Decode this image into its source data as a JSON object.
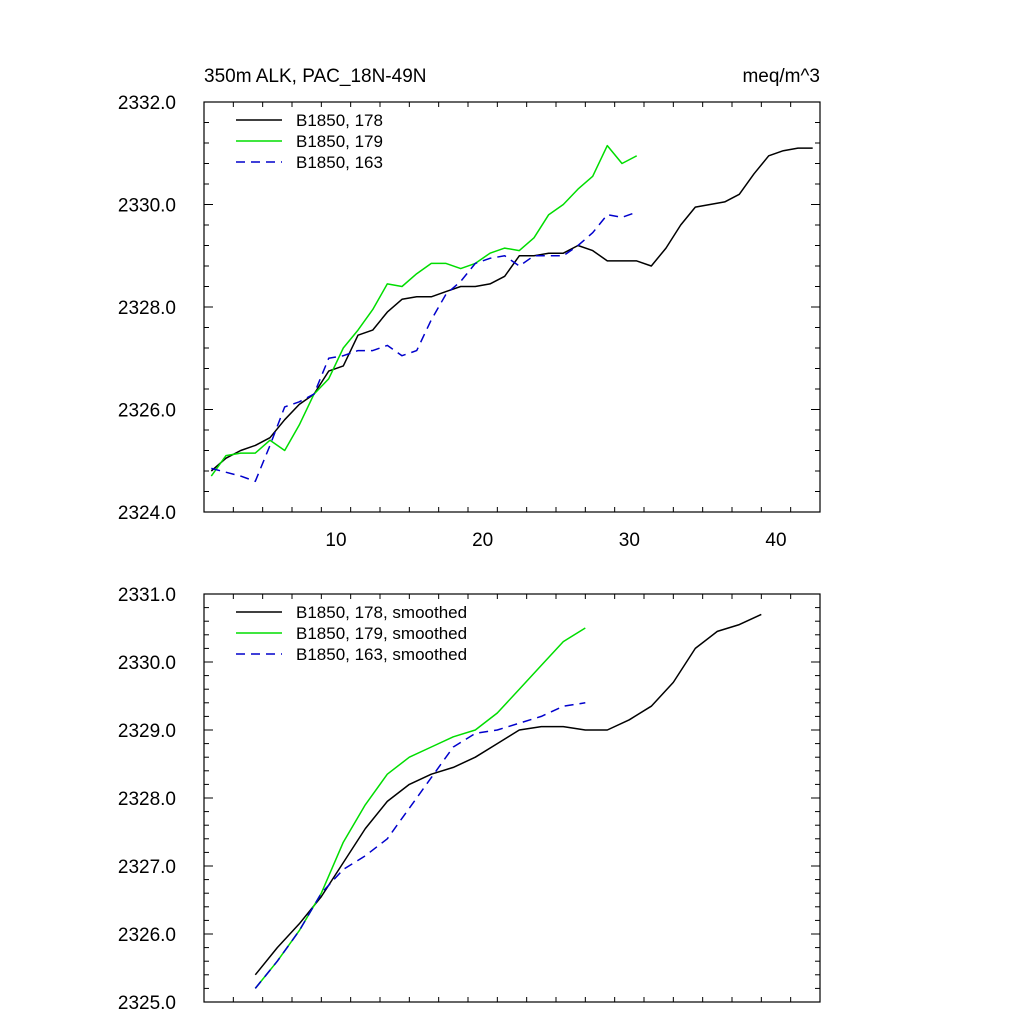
{
  "chart_data": [
    {
      "type": "line",
      "title": "350m ALK, PAC_18N-49N",
      "title_right": "meq/m^3",
      "xlim": [
        1,
        43
      ],
      "ylim": [
        2324.0,
        2332.0
      ],
      "xticks": [
        10,
        20,
        30,
        40
      ],
      "xtick_labels": [
        "10",
        "20",
        "30",
        "40"
      ],
      "yticks": [
        2324.0,
        2326.0,
        2328.0,
        2330.0,
        2332.0
      ],
      "ytick_labels": [
        "2324.0",
        "2326.0",
        "2328.0",
        "2330.0",
        "2332.0"
      ],
      "legend_position": "top-left",
      "series": [
        {
          "name": "B1850, 178",
          "color": "#000000",
          "dash": "solid",
          "x": [
            1.5,
            2.5,
            3.5,
            4.5,
            5.5,
            6.5,
            7.5,
            8.5,
            9.5,
            10.5,
            11.5,
            12.5,
            13.5,
            14.5,
            15.5,
            16.5,
            17.5,
            18.5,
            19.5,
            20.5,
            21.5,
            22.5,
            23.5,
            24.5,
            25.5,
            26.5,
            27.5,
            28.5,
            29.5,
            30.5,
            31.5,
            32.5,
            33.5,
            34.5,
            35.5,
            36.5,
            37.5,
            38.5,
            39.5,
            40.5,
            41.5,
            42.5
          ],
          "y": [
            2324.8,
            2325.05,
            2325.2,
            2325.3,
            2325.45,
            2325.8,
            2326.1,
            2326.3,
            2326.75,
            2326.85,
            2327.45,
            2327.55,
            2327.9,
            2328.15,
            2328.2,
            2328.2,
            2328.3,
            2328.4,
            2328.4,
            2328.45,
            2328.6,
            2329.0,
            2329.0,
            2329.05,
            2329.05,
            2329.2,
            2329.1,
            2328.9,
            2328.9,
            2328.9,
            2328.8,
            2329.15,
            2329.6,
            2329.95,
            2330.0,
            2330.05,
            2330.2,
            2330.6,
            2330.95,
            2331.05,
            2331.1,
            2331.1
          ]
        },
        {
          "name": "B1850, 179",
          "color": "#00dd00",
          "dash": "solid",
          "x": [
            1.5,
            2.5,
            3.5,
            4.5,
            5.5,
            6.5,
            7.5,
            8.5,
            9.5,
            10.5,
            11.5,
            12.5,
            13.5,
            14.5,
            15.5,
            16.5,
            17.5,
            18.5,
            19.5,
            20.5,
            21.5,
            22.5,
            23.5,
            24.5,
            25.5,
            26.5,
            27.5,
            28.5,
            29.5,
            30.5
          ],
          "y": [
            2324.7,
            2325.1,
            2325.15,
            2325.15,
            2325.4,
            2325.2,
            2325.7,
            2326.3,
            2326.6,
            2327.2,
            2327.55,
            2327.95,
            2328.45,
            2328.4,
            2328.65,
            2328.85,
            2328.85,
            2328.75,
            2328.85,
            2329.05,
            2329.15,
            2329.1,
            2329.35,
            2329.8,
            2330.0,
            2330.3,
            2330.55,
            2331.15,
            2330.8,
            2330.95
          ]
        },
        {
          "name": "B1850, 163",
          "color": "#0000cc",
          "dash": "dashed",
          "x": [
            1.5,
            3.5,
            4.5,
            5.5,
            6.5,
            7.5,
            8.5,
            9.5,
            10.5,
            11.5,
            12.5,
            13.5,
            14.5,
            15.5,
            16.5,
            17.5,
            18.5,
            19.5,
            20.5,
            21.5,
            22.5,
            23.5,
            24.5,
            25.5,
            26.5,
            27.5,
            28.5,
            29.5,
            30.5
          ],
          "y": [
            2324.85,
            2324.7,
            2324.6,
            2325.3,
            2326.05,
            2326.15,
            2326.3,
            2327.0,
            2327.05,
            2327.15,
            2327.15,
            2327.25,
            2327.05,
            2327.15,
            2327.75,
            2328.25,
            2328.5,
            2328.85,
            2328.95,
            2329.0,
            2328.8,
            2329.0,
            2329.0,
            2329.0,
            2329.2,
            2329.45,
            2329.8,
            2329.75,
            2329.85
          ]
        }
      ]
    },
    {
      "type": "line",
      "xlim": [
        1,
        43
      ],
      "ylim": [
        2325.0,
        2331.0
      ],
      "xticks": [
        10,
        20,
        30,
        40
      ],
      "yticks": [
        2325.0,
        2326.0,
        2327.0,
        2328.0,
        2329.0,
        2330.0,
        2331.0
      ],
      "ytick_labels": [
        "2325.0",
        "2326.0",
        "2327.0",
        "2328.0",
        "2329.0",
        "2330.0",
        "2331.0"
      ],
      "legend_position": "top-left",
      "series": [
        {
          "name": "B1850, 178, smoothed",
          "color": "#000000",
          "dash": "solid",
          "x": [
            4.5,
            6,
            7.5,
            9,
            10.5,
            12,
            13.5,
            15,
            16.5,
            18,
            19.5,
            21,
            22.5,
            24,
            25.5,
            27,
            28.5,
            30,
            31.5,
            33,
            34.5,
            36,
            37.5,
            39
          ],
          "y": [
            2325.4,
            2325.8,
            2326.15,
            2326.55,
            2327.05,
            2327.55,
            2327.95,
            2328.2,
            2328.35,
            2328.45,
            2328.6,
            2328.8,
            2329.0,
            2329.05,
            2329.05,
            2329.0,
            2329.0,
            2329.15,
            2329.35,
            2329.7,
            2330.2,
            2330.45,
            2330.55,
            2330.7
          ]
        },
        {
          "name": "B1850, 179, smoothed",
          "color": "#00dd00",
          "dash": "solid",
          "x": [
            4.5,
            6,
            7.5,
            9,
            10.5,
            12,
            13.5,
            15,
            16.5,
            18,
            19.5,
            21,
            22.5,
            24,
            25.5,
            27
          ],
          "y": [
            2325.2,
            2325.6,
            2326.05,
            2326.6,
            2327.35,
            2327.9,
            2328.35,
            2328.6,
            2328.75,
            2328.9,
            2329.0,
            2329.25,
            2329.6,
            2329.95,
            2330.3,
            2330.5
          ]
        },
        {
          "name": "B1850, 163, smoothed",
          "color": "#0000cc",
          "dash": "dashed",
          "x": [
            4.5,
            6,
            7.5,
            9,
            10.5,
            12,
            13.5,
            15,
            16.5,
            18,
            19.5,
            21,
            22.5,
            24,
            25.5,
            27
          ],
          "y": [
            2325.2,
            2325.6,
            2326.05,
            2326.6,
            2326.95,
            2327.15,
            2327.4,
            2327.85,
            2328.3,
            2328.75,
            2328.95,
            2329.0,
            2329.1,
            2329.2,
            2329.35,
            2329.4
          ]
        }
      ]
    }
  ]
}
